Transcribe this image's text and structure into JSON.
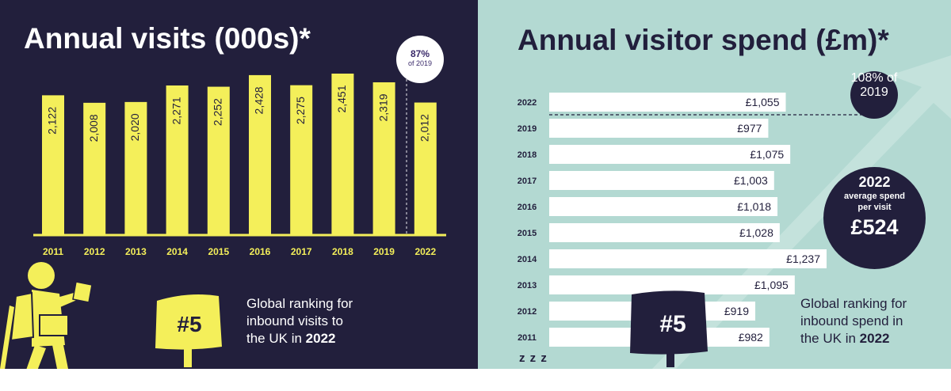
{
  "visits": {
    "title": "Annual visits (000s)*",
    "badge_pct": "87%",
    "badge_sub": "of 2019",
    "ranking_number": "#5",
    "ranking_line1": "Global ranking for",
    "ranking_line2": "inbound visits to",
    "ranking_line3_prefix": "the UK in ",
    "ranking_year": "2022"
  },
  "spend": {
    "title": "Annual visitor spend (£m)*",
    "badge_pct": "108%",
    "badge_sub": "of 2019",
    "avg_year": "2022",
    "avg_label1": "average spend",
    "avg_label2": "per visit",
    "avg_value": "£524",
    "ranking_number": "#5",
    "ranking_line1": "Global ranking for",
    "ranking_line2": "inbound spend in",
    "ranking_line3_prefix": "the UK in ",
    "ranking_year": "2022",
    "zzz": "z z z"
  },
  "colors": {
    "navy": "#221f3c",
    "yellow": "#f4ef5a",
    "teal": "#b3d9d2",
    "white": "#ffffff"
  },
  "chart_data": [
    {
      "type": "bar",
      "title": "Annual visits (000s)*",
      "categories": [
        "2011",
        "2012",
        "2013",
        "2014",
        "2015",
        "2016",
        "2017",
        "2018",
        "2019",
        "2022"
      ],
      "values": [
        2122,
        2008,
        2020,
        2271,
        2252,
        2428,
        2275,
        2451,
        2319,
        2012
      ],
      "labels": [
        "2,122",
        "2,008",
        "2,020",
        "2,271",
        "2,252",
        "2,428",
        "2,275",
        "2,451",
        "2,319",
        "2,012"
      ],
      "orientation": "vertical",
      "annotation": "87% of 2019"
    },
    {
      "type": "bar",
      "title": "Annual visitor spend (£m)*",
      "categories": [
        "2022",
        "2019",
        "2018",
        "2017",
        "2016",
        "2015",
        "2014",
        "2013",
        "2012",
        "2011"
      ],
      "values": [
        1055,
        977,
        1075,
        1003,
        1018,
        1028,
        1237,
        1095,
        919,
        982
      ],
      "labels": [
        "£1,055",
        "£977",
        "£1,075",
        "£1,003",
        "£1,018",
        "£1,028",
        "£1,237",
        "£1,095",
        "£919",
        "£982"
      ],
      "orientation": "horizontal",
      "annotation": "108% of 2019"
    }
  ]
}
